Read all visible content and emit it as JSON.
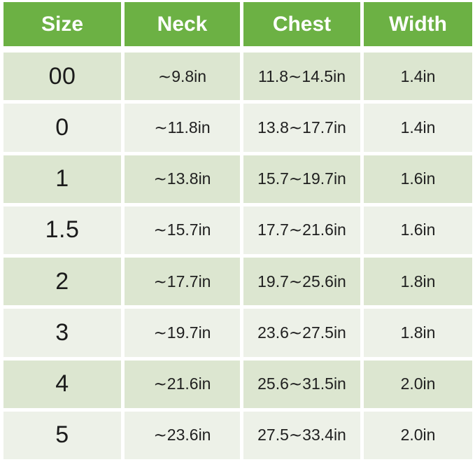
{
  "colors": {
    "header_bg": "#6CB144",
    "header_text": "#FFFFFF",
    "row_green_bg": "#DCE6D0",
    "row_pale_bg": "#EDF1E8",
    "cell_text": "#1B1B1B",
    "gridline": "#FFFFFF"
  },
  "chart_data": {
    "type": "table",
    "columns": [
      "Size",
      "Neck",
      "Chest",
      "Width"
    ],
    "rows": [
      [
        "00",
        "∼9.8in",
        "11.8∼14.5in",
        "1.4in"
      ],
      [
        "0",
        "∼11.8in",
        "13.8∼17.7in",
        "1.4in"
      ],
      [
        "1",
        "∼13.8in",
        "15.7∼19.7in",
        "1.6in"
      ],
      [
        "1.5",
        "∼15.7in",
        "17.7∼21.6in",
        "1.6in"
      ],
      [
        "2",
        "∼17.7in",
        "19.7∼25.6in",
        "1.8in"
      ],
      [
        "3",
        "∼19.7in",
        "23.6∼27.5in",
        "1.8in"
      ],
      [
        "4",
        "∼21.6in",
        "25.6∼31.5in",
        "2.0in"
      ],
      [
        "5",
        "∼23.6in",
        "27.5∼33.4in",
        "2.0in"
      ]
    ]
  }
}
